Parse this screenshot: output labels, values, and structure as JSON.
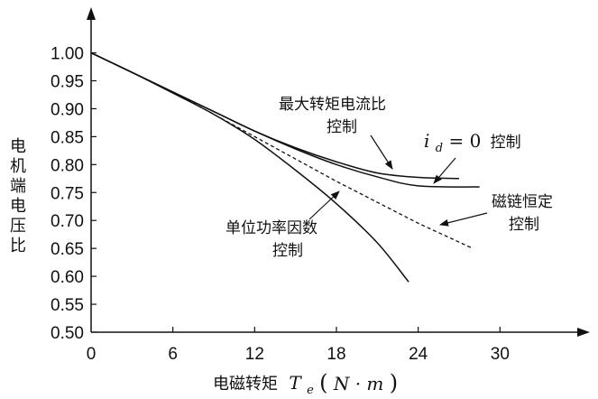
{
  "chart_data": {
    "type": "line",
    "xlabel_cn": "电磁转矩",
    "xlabel_var": "T",
    "xlabel_sub": "e",
    "xlabel_unit_open": "(",
    "xlabel_unit": "N · m",
    "xlabel_unit_close": ")",
    "ylabel": [
      "电",
      "机",
      "端",
      "电",
      "压",
      "比"
    ],
    "xlim": [
      0,
      36
    ],
    "ylim": [
      0.5,
      1.05
    ],
    "x_ticks": [
      0,
      6,
      12,
      18,
      24,
      30
    ],
    "x_tick_labels": [
      "0",
      "6",
      "12",
      "18",
      "24",
      "30"
    ],
    "y_ticks": [
      0.5,
      0.55,
      0.6,
      0.65,
      0.7,
      0.75,
      0.8,
      0.85,
      0.9,
      0.95,
      1.0
    ],
    "y_tick_labels": [
      "0.50",
      "0.55",
      "0.60",
      "0.65",
      "0.70",
      "0.75",
      "0.80",
      "0.85",
      "0.90",
      "0.95",
      "1.00"
    ],
    "series": [
      {
        "name": "最大转矩电流比控制",
        "style": "solid",
        "x": [
          0,
          3,
          6,
          9,
          12,
          15,
          18,
          21,
          24,
          27
        ],
        "y": [
          1.0,
          0.965,
          0.93,
          0.895,
          0.86,
          0.83,
          0.805,
          0.785,
          0.777,
          0.775
        ]
      },
      {
        "name": "i_d = 0 控制",
        "style": "solid",
        "x": [
          0,
          3,
          6,
          9,
          12,
          15,
          18,
          21,
          24,
          28.5
        ],
        "y": [
          1.0,
          0.965,
          0.93,
          0.895,
          0.86,
          0.828,
          0.8,
          0.778,
          0.762,
          0.76
        ]
      },
      {
        "name": "磁链恒定控制",
        "style": "dashed",
        "x": [
          0,
          6,
          12,
          18,
          24,
          28
        ],
        "y": [
          1.0,
          0.93,
          0.85,
          0.77,
          0.695,
          0.65
        ]
      },
      {
        "name": "单位功率因数控制",
        "style": "solid",
        "x": [
          0,
          3,
          6,
          9,
          12,
          15,
          18,
          21,
          23.3
        ],
        "y": [
          1.0,
          0.965,
          0.928,
          0.89,
          0.845,
          0.79,
          0.73,
          0.66,
          0.59
        ]
      }
    ],
    "annotations": [
      {
        "lines": [
          "最大转矩电流比",
          "控制"
        ]
      },
      {
        "prefix_var": "i",
        "prefix_sub": "d",
        "eq": " = 0",
        "suffix": "控制"
      },
      {
        "lines": [
          "磁链恒定",
          "控制"
        ]
      },
      {
        "lines": [
          "单位功率因数",
          "控制"
        ]
      }
    ]
  }
}
